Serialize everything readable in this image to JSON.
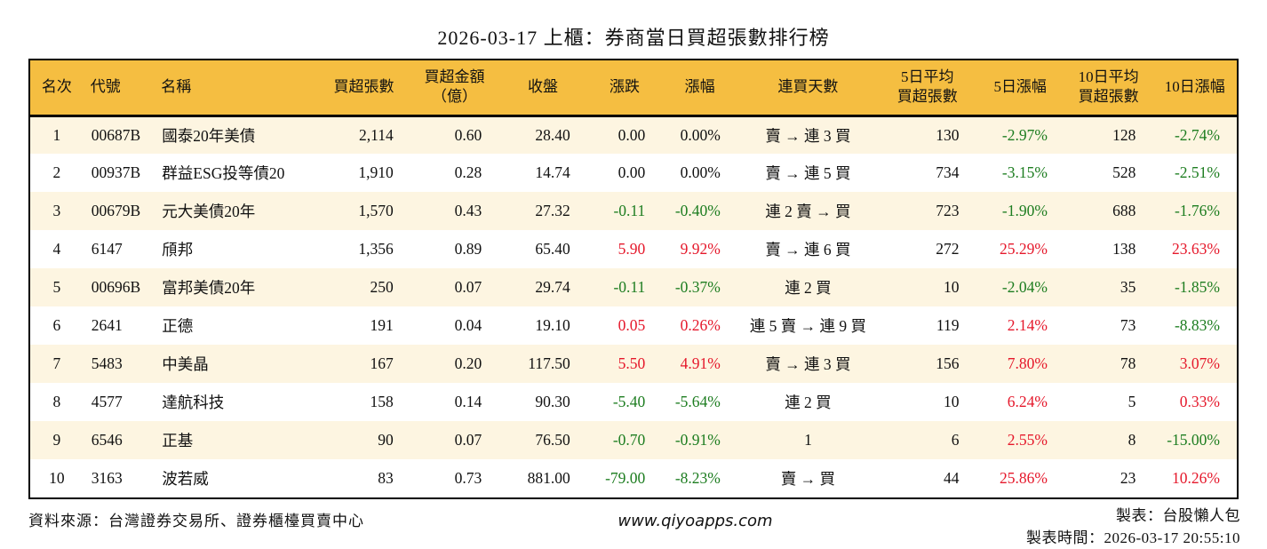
{
  "title": "2026-03-17 上櫃：券商當日買超張數排行榜",
  "colors": {
    "header_bg": "#F5BE41",
    "row_alt_bg": "#FDF5E1",
    "up_red": "#E5182B",
    "down_green": "#1D7D20",
    "border": "#000000"
  },
  "chart_data": {
    "type": "table",
    "title": "2026-03-17 上櫃：券商當日買超張數排行榜",
    "legend_note": "red = up, green = down",
    "columns": [
      {
        "key": "rank",
        "label": [
          "名次"
        ],
        "align": "center",
        "header_align": "center"
      },
      {
        "key": "code",
        "label": [
          "代號"
        ],
        "align": "left",
        "header_align": "left"
      },
      {
        "key": "name",
        "label": [
          "名稱"
        ],
        "align": "left",
        "header_align": "left"
      },
      {
        "key": "net-buy-volume",
        "label": [
          "買超張數"
        ],
        "align": "right",
        "header_align": "center"
      },
      {
        "key": "net-buy-amount",
        "label": [
          "買超金額",
          "（億）"
        ],
        "align": "right",
        "header_align": "center"
      },
      {
        "key": "close",
        "label": [
          "收盤"
        ],
        "align": "right",
        "header_align": "center"
      },
      {
        "key": "change",
        "label": [
          "漲跌"
        ],
        "align": "right",
        "header_align": "center"
      },
      {
        "key": "change-pct",
        "label": [
          "漲幅"
        ],
        "align": "right",
        "header_align": "center"
      },
      {
        "key": "buy-streak",
        "label": [
          "連買天數"
        ],
        "align": "center",
        "header_align": "center"
      },
      {
        "key": "avg5-volume",
        "label": [
          "5日平均",
          "買超張數"
        ],
        "align": "right",
        "header_align": "center"
      },
      {
        "key": "pct5",
        "label": [
          "5日漲幅"
        ],
        "align": "right",
        "header_align": "center"
      },
      {
        "key": "avg10-volume",
        "label": [
          "10日平均",
          "買超張數"
        ],
        "align": "right",
        "header_align": "center"
      },
      {
        "key": "pct10",
        "label": [
          "10日漲幅"
        ],
        "align": "right",
        "header_align": "center"
      }
    ],
    "rows": [
      [
        "1",
        "00687B",
        "國泰20年美債",
        "2,114",
        "0.60",
        "28.40",
        "0.00",
        "0.00%",
        "賣 → 連 3 買",
        "130",
        [
          "-2.97%",
          "down"
        ],
        "128",
        [
          "-2.74%",
          "down"
        ]
      ],
      [
        "2",
        "00937B",
        "群益ESG投等債20",
        "1,910",
        "0.28",
        "14.74",
        "0.00",
        "0.00%",
        "賣 → 連 5 買",
        "734",
        [
          "-3.15%",
          "down"
        ],
        "528",
        [
          "-2.51%",
          "down"
        ]
      ],
      [
        "3",
        "00679B",
        "元大美債20年",
        "1,570",
        "0.43",
        "27.32",
        [
          "-0.11",
          "down"
        ],
        [
          "-0.40%",
          "down"
        ],
        "連 2 賣 → 買",
        "723",
        [
          "-1.90%",
          "down"
        ],
        "688",
        [
          "-1.76%",
          "down"
        ]
      ],
      [
        "4",
        "6147",
        "頎邦",
        "1,356",
        "0.89",
        "65.40",
        [
          "5.90",
          "up"
        ],
        [
          "9.92%",
          "up"
        ],
        "賣 → 連 6 買",
        "272",
        [
          "25.29%",
          "up"
        ],
        "138",
        [
          "23.63%",
          "up"
        ]
      ],
      [
        "5",
        "00696B",
        "富邦美債20年",
        "250",
        "0.07",
        "29.74",
        [
          "-0.11",
          "down"
        ],
        [
          "-0.37%",
          "down"
        ],
        "連 2 買",
        "10",
        [
          "-2.04%",
          "down"
        ],
        "35",
        [
          "-1.85%",
          "down"
        ]
      ],
      [
        "6",
        "2641",
        "正德",
        "191",
        "0.04",
        "19.10",
        [
          "0.05",
          "up"
        ],
        [
          "0.26%",
          "up"
        ],
        "連 5 賣 → 連 9 買",
        "119",
        [
          "2.14%",
          "up"
        ],
        "73",
        [
          "-8.83%",
          "down"
        ]
      ],
      [
        "7",
        "5483",
        "中美晶",
        "167",
        "0.20",
        "117.50",
        [
          "5.50",
          "up"
        ],
        [
          "4.91%",
          "up"
        ],
        "賣 → 連 3 買",
        "156",
        [
          "7.80%",
          "up"
        ],
        "78",
        [
          "3.07%",
          "up"
        ]
      ],
      [
        "8",
        "4577",
        "達航科技",
        "158",
        "0.14",
        "90.30",
        [
          "-5.40",
          "down"
        ],
        [
          "-5.64%",
          "down"
        ],
        "連 2 買",
        "10",
        [
          "6.24%",
          "up"
        ],
        "5",
        [
          "0.33%",
          "up"
        ]
      ],
      [
        "9",
        "6546",
        "正基",
        "90",
        "0.07",
        "76.50",
        [
          "-0.70",
          "down"
        ],
        [
          "-0.91%",
          "down"
        ],
        "1",
        "6",
        [
          "2.55%",
          "up"
        ],
        "8",
        [
          "-15.00%",
          "down"
        ]
      ],
      [
        "10",
        "3163",
        "波若威",
        "83",
        "0.73",
        "881.00",
        [
          "-79.00",
          "down"
        ],
        [
          "-8.23%",
          "down"
        ],
        "賣 → 買",
        "44",
        [
          "25.86%",
          "up"
        ],
        "23",
        [
          "10.26%",
          "up"
        ]
      ]
    ]
  },
  "footer": {
    "source": "資料來源：台灣證券交易所、證券櫃檯買賣中心",
    "website": "www.qiyoapps.com",
    "maker": "製表：台股懶人包",
    "made_time": "製表時間：2026-03-17 20:55:10"
  }
}
